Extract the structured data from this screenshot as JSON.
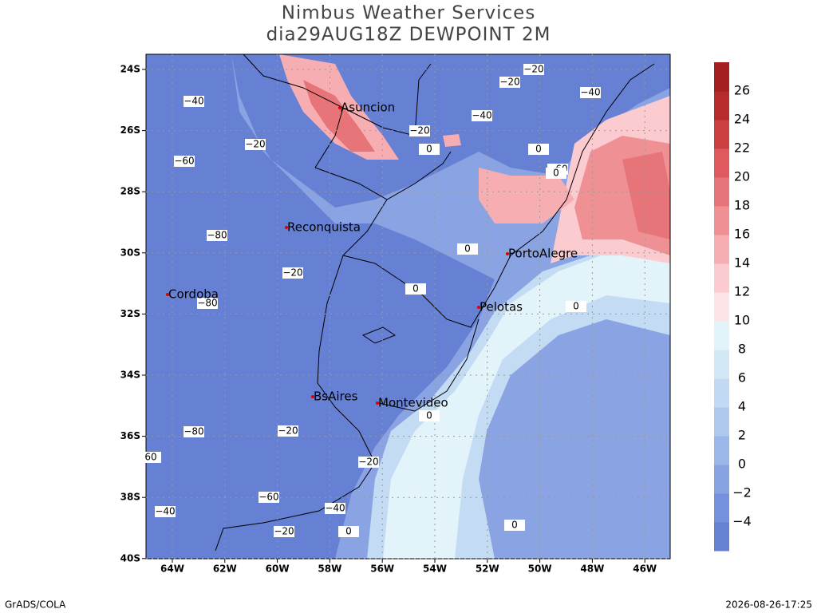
{
  "header": {
    "title": "Nimbus Weather Services",
    "subtitle": "dia29AUG18Z DEWPOINT 2M"
  },
  "map": {
    "lon_labels": [
      "64W",
      "62W",
      "60W",
      "58W",
      "56W",
      "54W",
      "52W",
      "50W",
      "48W",
      "46W"
    ],
    "lat_labels": [
      "24S",
      "26S",
      "28S",
      "30S",
      "32S",
      "34S",
      "36S",
      "38S",
      "40S"
    ],
    "cities": [
      "Asuncion",
      "Reconquista",
      "PortoAlegre",
      "Cordoba",
      "Pelotas",
      "BsAires",
      "Montevideo"
    ],
    "contour_labels": [
      "−40",
      "−20",
      "−60",
      "−80",
      "−20",
      "−80",
      "−80",
      "−20",
      "60",
      "−60",
      "−40",
      "−20",
      "−40",
      "0",
      "−20",
      "−20",
      "0",
      "−40",
      "−20",
      "−20",
      "−40",
      "0",
      "−60",
      "0",
      "0",
      "0",
      "0",
      "0",
      "0"
    ]
  },
  "colorbar": {
    "labels": [
      "−4",
      "−2",
      "0",
      "2",
      "4",
      "6",
      "8",
      "10",
      "12",
      "14",
      "16",
      "18",
      "20",
      "22",
      "24",
      "26"
    ]
  },
  "footer": {
    "left": "GrADS/COLA",
    "right": "2026-08-26-17:25"
  }
}
